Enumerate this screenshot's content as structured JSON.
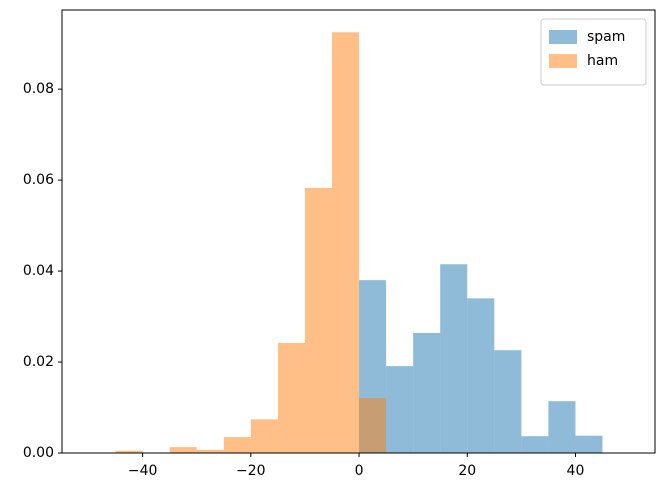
{
  "chart_data": {
    "type": "histogram",
    "series": [
      {
        "name": "spam",
        "color": "#1f77b4",
        "alpha": 0.5,
        "bins": [
          0,
          5,
          10,
          15,
          20,
          25,
          30,
          35,
          40,
          45
        ],
        "values": [
          0.038,
          0.0191,
          0.0264,
          0.0415,
          0.034,
          0.0226,
          0.0037,
          0.0114,
          0.0038
        ]
      },
      {
        "name": "ham",
        "color": "#ff7f0e",
        "alpha": 0.5,
        "bins": [
          -45,
          -40,
          -35,
          -30,
          -25,
          -20,
          -15,
          -10,
          -5,
          0,
          5
        ],
        "values": [
          0.0005,
          0,
          0.0013,
          0.0007,
          0.0035,
          0.0074,
          0.0242,
          0.0583,
          0.0925,
          0.0121
        ]
      }
    ],
    "xlim": [
      -54.9,
      54.7
    ],
    "ylim": [
      0,
      0.0974
    ],
    "xticks": [
      {
        "value": -40,
        "label": "−40"
      },
      {
        "value": -20,
        "label": "−20"
      },
      0,
      {
        "value": 20,
        "label": "20"
      },
      {
        "value": 40,
        "label": "40"
      }
    ],
    "yticks": [
      {
        "value": 0,
        "label": "0.00"
      },
      {
        "value": 0.02,
        "label": "0.02"
      },
      {
        "value": 0.04,
        "label": "0.04"
      },
      {
        "value": 0.06,
        "label": "0.06"
      },
      {
        "value": 0.08,
        "label": "0.08"
      }
    ],
    "legend": "upper right"
  }
}
